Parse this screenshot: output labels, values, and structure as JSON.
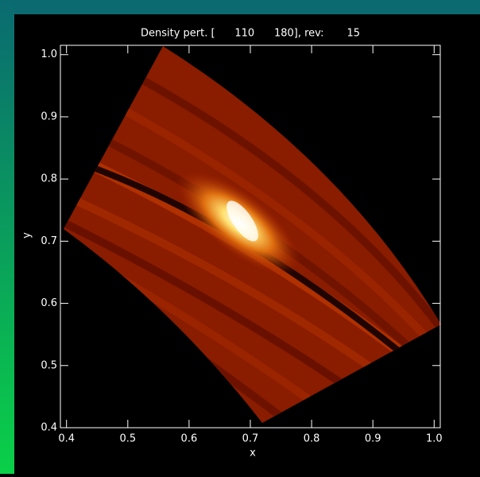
{
  "chart_data": {
    "type": "image",
    "title": "Density pert. [      110      180], rev:       15",
    "x_label": "x",
    "y_label": "y",
    "xlim": [
      0.39,
      1.01
    ],
    "ylim": [
      0.4,
      1.015
    ],
    "xticks": [
      {
        "value": 0.4,
        "label": "0.4"
      },
      0.5,
      0.6,
      0.7,
      0.8,
      0.9,
      {
        "value": 1.0,
        "label": "1.0"
      }
    ],
    "yticks": [
      {
        "value": 0.4,
        "label": "0.4"
      },
      0.5,
      0.6,
      0.7,
      0.8,
      0.9,
      {
        "value": 1.0,
        "label": "1.0"
      }
    ]
  }
}
